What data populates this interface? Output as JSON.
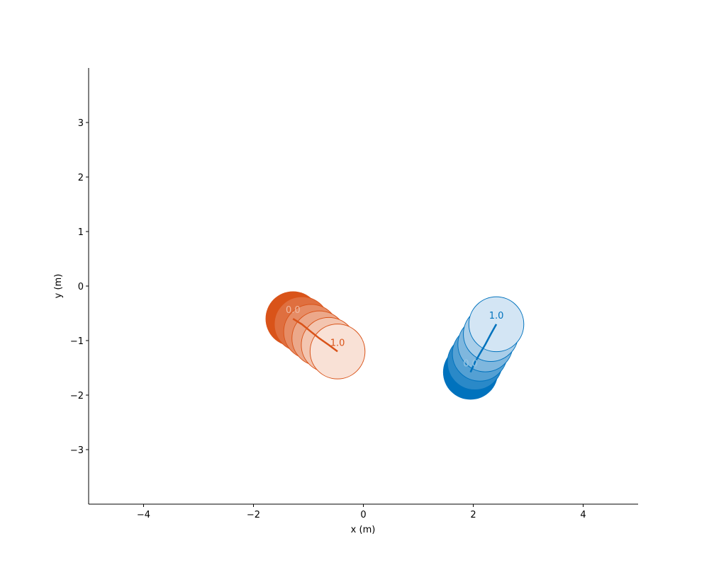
{
  "chart_data": {
    "type": "scatter",
    "xlabel": "x (m)",
    "ylabel": "y (m)",
    "xlim": [
      -5,
      5
    ],
    "ylim": [
      -4,
      4
    ],
    "x_ticks": [
      -4,
      -2,
      0,
      2,
      4
    ],
    "y_ticks": [
      -3,
      -2,
      -1,
      0,
      1,
      2,
      3
    ],
    "x_tick_labels": [
      "−4",
      "−2",
      "0",
      "2",
      "4"
    ],
    "y_tick_labels": [
      "−3",
      "−2",
      "−1",
      "0",
      "1",
      "2",
      "3"
    ],
    "grid": false,
    "circle_radius": 0.5,
    "series": [
      {
        "color": "#D95319",
        "light_color": "#F9E1D6",
        "start_label": "0.0",
        "end_label": "1.0",
        "times": [
          0.0,
          0.2,
          0.4,
          0.6,
          0.8,
          1.0
        ],
        "x": [
          -1.28,
          -1.12,
          -0.95,
          -0.8,
          -0.63,
          -0.47
        ],
        "y": [
          -0.6,
          -0.7,
          -0.84,
          -0.96,
          -1.08,
          -1.2
        ]
      },
      {
        "color": "#0072BD",
        "light_color": "#D3E5F4",
        "start_label": "0.0",
        "end_label": "1.0",
        "times": [
          0.0,
          0.2,
          0.4,
          0.6,
          0.8,
          1.0
        ],
        "x": [
          1.95,
          2.03,
          2.12,
          2.22,
          2.32,
          2.42
        ],
        "y": [
          -1.58,
          -1.4,
          -1.24,
          -1.07,
          -0.88,
          -0.7
        ]
      }
    ]
  }
}
